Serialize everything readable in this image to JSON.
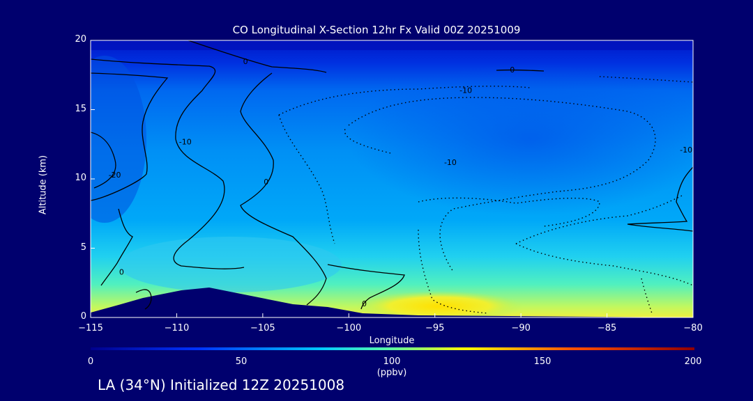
{
  "chart_data": {
    "type": "contour",
    "title": "CO Longitudinal X-Section 12hr  Fx Valid 00Z 20251009",
    "xlabel": "Longitude",
    "ylabel": "Altitude (km)",
    "xlim": [
      -115,
      -80
    ],
    "ylim": [
      0,
      20
    ],
    "x_ticks": [
      "−115",
      "−110",
      "−105",
      "−100",
      "−95",
      "−90",
      "−85",
      "−80"
    ],
    "y_ticks": [
      "0",
      "5",
      "10",
      "15",
      "20"
    ],
    "colorbar": {
      "ticks": [
        "0",
        "50",
        "100",
        "150",
        "200"
      ],
      "range": [
        0,
        200
      ],
      "units": "(ppbv)"
    },
    "contour_labels": [
      {
        "text": "0",
        "lon": -106.0,
        "alt": 18.3
      },
      {
        "text": "-10",
        "lon": -109.5,
        "alt": 12.5
      },
      {
        "text": "0",
        "lon": -104.8,
        "alt": 9.6
      },
      {
        "text": "-20",
        "lon": -113.6,
        "alt": 10.1
      },
      {
        "text": "0",
        "lon": -113.2,
        "alt": 3.1
      },
      {
        "text": "0",
        "lon": -99.1,
        "alt": 0.8
      },
      {
        "text": "0",
        "lon": -90.5,
        "alt": 17.7
      },
      {
        "text": "-10",
        "lon": -93.2,
        "alt": 16.2
      },
      {
        "text": "-10",
        "lon": -94.1,
        "alt": 11.0
      },
      {
        "text": "-10",
        "lon": -80.4,
        "alt": 11.9
      }
    ],
    "terrain_profile": [
      {
        "lon": -115.0,
        "alt": 0.2
      },
      {
        "lon": -113.2,
        "alt": 0.8
      },
      {
        "lon": -111.5,
        "alt": 1.3
      },
      {
        "lon": -109.5,
        "alt": 2.1
      },
      {
        "lon": -108.2,
        "alt": 2.1
      },
      {
        "lon": -106.5,
        "alt": 1.7
      },
      {
        "lon": -104.5,
        "alt": 1.2
      },
      {
        "lon": -102.0,
        "alt": 1.0
      },
      {
        "lon": -99.5,
        "alt": 0.5
      },
      {
        "lon": -96.0,
        "alt": 0.2
      },
      {
        "lon": -80.0,
        "alt": 0.0
      }
    ],
    "co_field_ppbv": [
      {
        "alt_band": "0-1",
        "values": [
          60,
          60,
          62,
          70,
          90,
          110,
          100,
          95,
          92,
          90
        ]
      },
      {
        "alt_band": "1-3",
        "values": [
          55,
          60,
          70,
          80,
          88,
          92,
          90,
          88,
          85,
          85
        ]
      },
      {
        "alt_band": "3-6",
        "values": [
          50,
          55,
          65,
          70,
          70,
          68,
          66,
          66,
          68,
          70
        ]
      },
      {
        "alt_band": "6-10",
        "values": [
          48,
          50,
          55,
          60,
          55,
          52,
          50,
          52,
          55,
          55
        ]
      },
      {
        "alt_band": "10-15",
        "values": [
          40,
          45,
          50,
          52,
          48,
          44,
          45,
          46,
          48,
          48
        ]
      },
      {
        "alt_band": "15-20",
        "values": [
          20,
          25,
          30,
          30,
          30,
          30,
          28,
          25,
          22,
          20
        ]
      }
    ]
  },
  "footer": "LA (34°N) Initialized 12Z 20251008"
}
